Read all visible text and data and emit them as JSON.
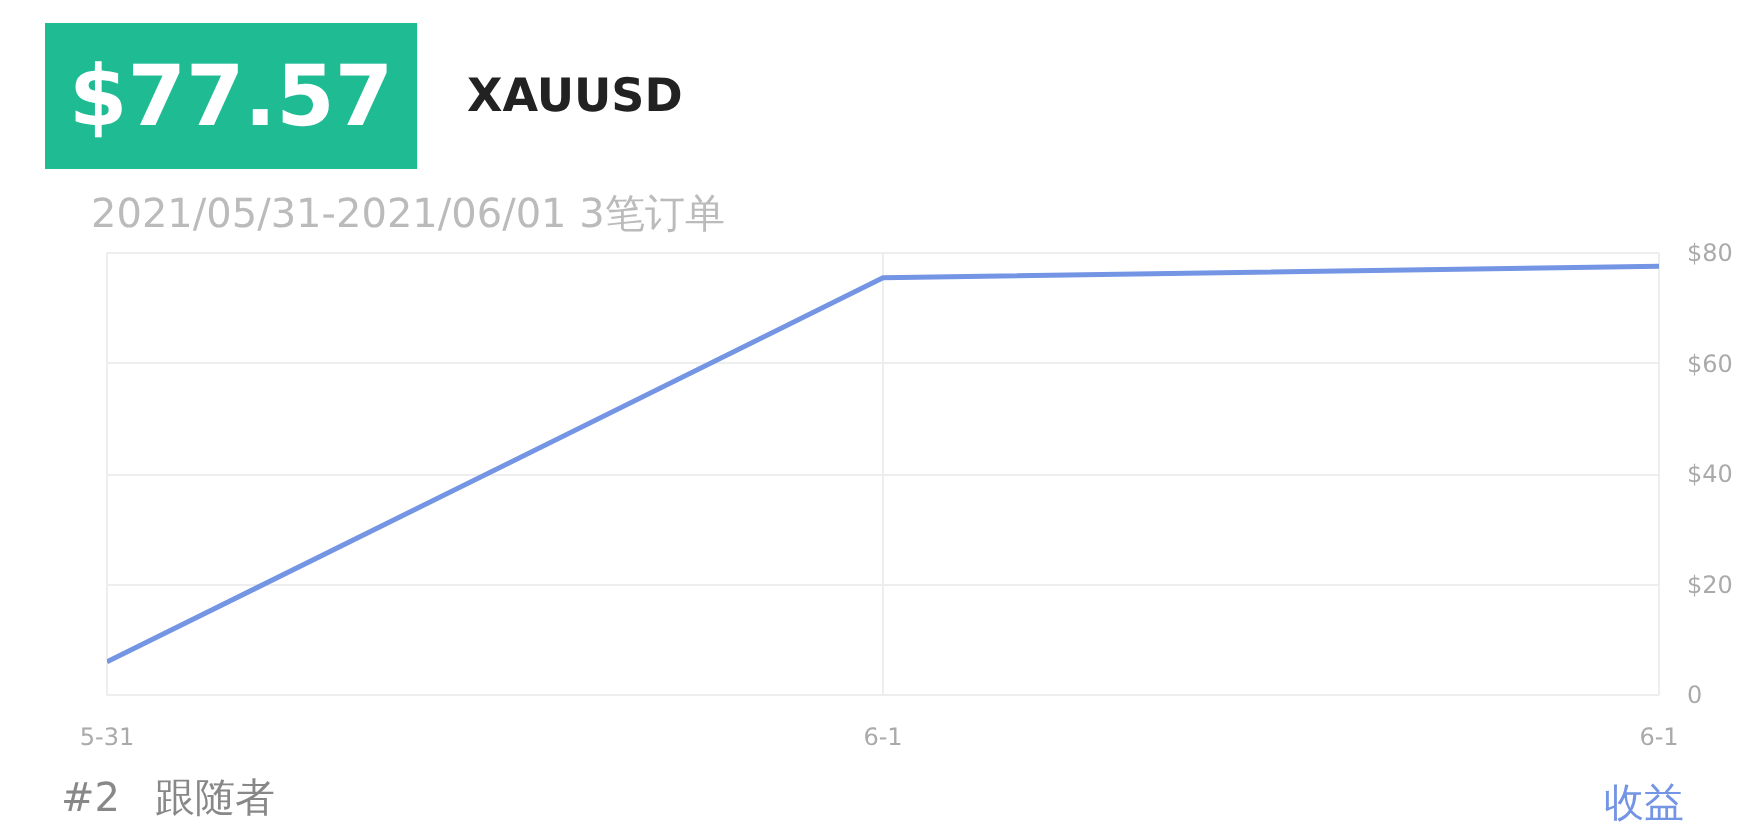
{
  "chart_data": {
    "type": "line",
    "title": "$77.57",
    "subtitle": "XAUUSD",
    "categories": [
      "5-31",
      "6-1",
      "6-1"
    ],
    "series": [
      {
        "name": "收益",
        "color": "#7494e4",
        "values": [
          6,
          75.5,
          77.6
        ]
      }
    ],
    "ylim": [
      0,
      80
    ],
    "yticks": [
      0,
      {
        "value": 20,
        "label": "$20"
      },
      {
        "value": 40,
        "label": "$40"
      },
      {
        "value": 60,
        "label": "$60"
      },
      {
        "value": 80,
        "label": "$80"
      }
    ],
    "grid": true,
    "legend": "bottom right",
    "marker": "none",
    "line_style": "solid",
    "annotations": [
      "2021/05/31-2021/06/01 3笔订单",
      "#2",
      "跟随者"
    ]
  }
}
